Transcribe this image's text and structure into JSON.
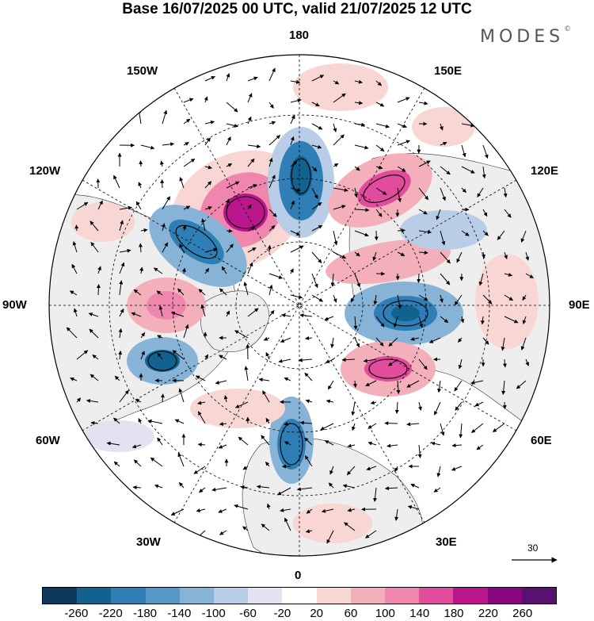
{
  "title": "Base 16/07/2025 00 UTC, valid 21/07/2025 12 UTC",
  "brand": "MODES",
  "brand_mark": "©",
  "longitude_labels": {
    "top": "180",
    "bottom": "0",
    "left": "90W",
    "right": "90E",
    "nw_150": "150W",
    "ne_150": "150E",
    "w_120": "120W",
    "e_120": "120E",
    "w_60": "60W",
    "e_60": "60E",
    "sw_30": "30W",
    "se_30": "30E"
  },
  "reference_vector": "30",
  "colorbar": {
    "levels": [
      "-260",
      "-220",
      "-180",
      "-140",
      "-100",
      "-60",
      "-20",
      "20",
      "60",
      "100",
      "140",
      "180",
      "220",
      "260"
    ],
    "colors": [
      "#0d3a5c",
      "#12628f",
      "#2f7fb6",
      "#5598c6",
      "#86b3d6",
      "#b9cde6",
      "#e2e2f0",
      "#ffffff",
      "#f8d6d4",
      "#f3b0bb",
      "#ef86ad",
      "#e24c9c",
      "#bc168c",
      "#88067e",
      "#591170"
    ]
  },
  "map": {
    "land_color": "#eeeeee",
    "ocean_color": "#ffffff",
    "positive_color": "#ef86ad",
    "negative_color": "#2f7fb6"
  }
}
